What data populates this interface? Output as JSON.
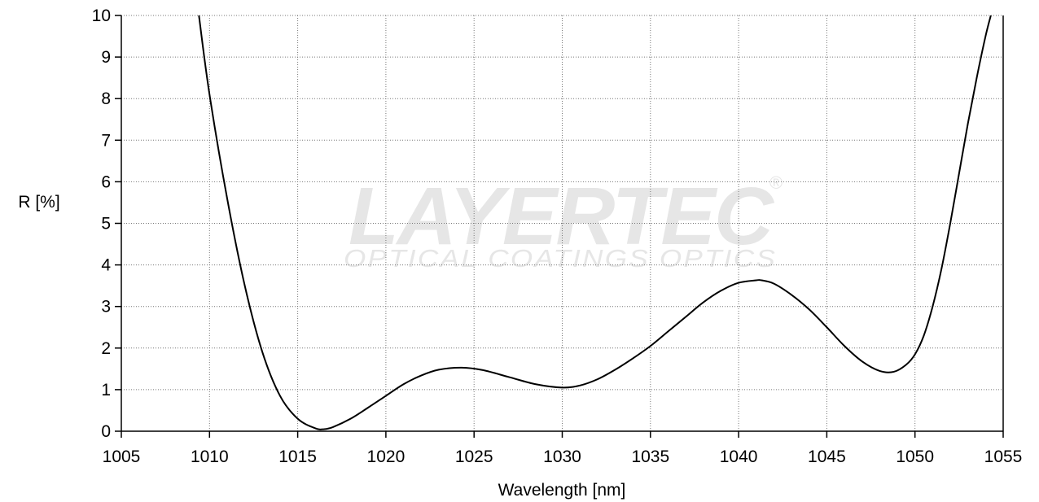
{
  "chart_data": {
    "type": "line",
    "title": "",
    "xlabel": "Wavelength [nm]",
    "ylabel": "R [%]",
    "xlim": [
      1005,
      1055
    ],
    "ylim": [
      0,
      10
    ],
    "xticks": [
      "1005",
      "1010",
      "1015",
      "1020",
      "1025",
      "1030",
      "1035",
      "1040",
      "1045",
      "1050",
      "1055"
    ],
    "yticks": [
      "0",
      "1",
      "2",
      "3",
      "4",
      "5",
      "6",
      "7",
      "8",
      "9",
      "10"
    ],
    "grid": true,
    "grid_style": "dotted",
    "line_color": "#000000",
    "series": [
      {
        "x": [
          1009.4,
          1010.0,
          1011.0,
          1012.0,
          1013.0,
          1014.0,
          1015.0,
          1016.0,
          1016.5,
          1017.0,
          1018.0,
          1019.0,
          1020.0,
          1021.0,
          1022.0,
          1023.0,
          1024.3,
          1025.5,
          1027.0,
          1028.5,
          1030.0,
          1031.0,
          1032.0,
          1033.0,
          1034.0,
          1035.0,
          1036.0,
          1037.0,
          1038.0,
          1039.0,
          1040.0,
          1041.0,
          1041.3,
          1042.0,
          1043.0,
          1044.0,
          1045.0,
          1046.0,
          1047.0,
          1048.0,
          1048.8,
          1049.5,
          1050.0,
          1050.5,
          1051.0,
          1051.5,
          1052.0,
          1052.5,
          1053.0,
          1053.5,
          1054.0,
          1054.3
        ],
        "y": [
          10.0,
          8.1,
          5.6,
          3.5,
          1.9,
          0.85,
          0.3,
          0.07,
          0.05,
          0.1,
          0.3,
          0.57,
          0.85,
          1.13,
          1.34,
          1.48,
          1.53,
          1.47,
          1.3,
          1.13,
          1.05,
          1.1,
          1.25,
          1.48,
          1.75,
          2.05,
          2.4,
          2.75,
          3.1,
          3.38,
          3.57,
          3.63,
          3.63,
          3.55,
          3.28,
          2.93,
          2.5,
          2.05,
          1.68,
          1.45,
          1.43,
          1.6,
          1.85,
          2.3,
          3.0,
          3.9,
          5.0,
          6.2,
          7.4,
          8.5,
          9.5,
          10.0
        ]
      }
    ]
  },
  "watermark": {
    "brand": "LAYERTEC",
    "registered": "®",
    "tagline": "OPTICAL COATINGS  OPTICS",
    "color": "#e6e6e6"
  }
}
